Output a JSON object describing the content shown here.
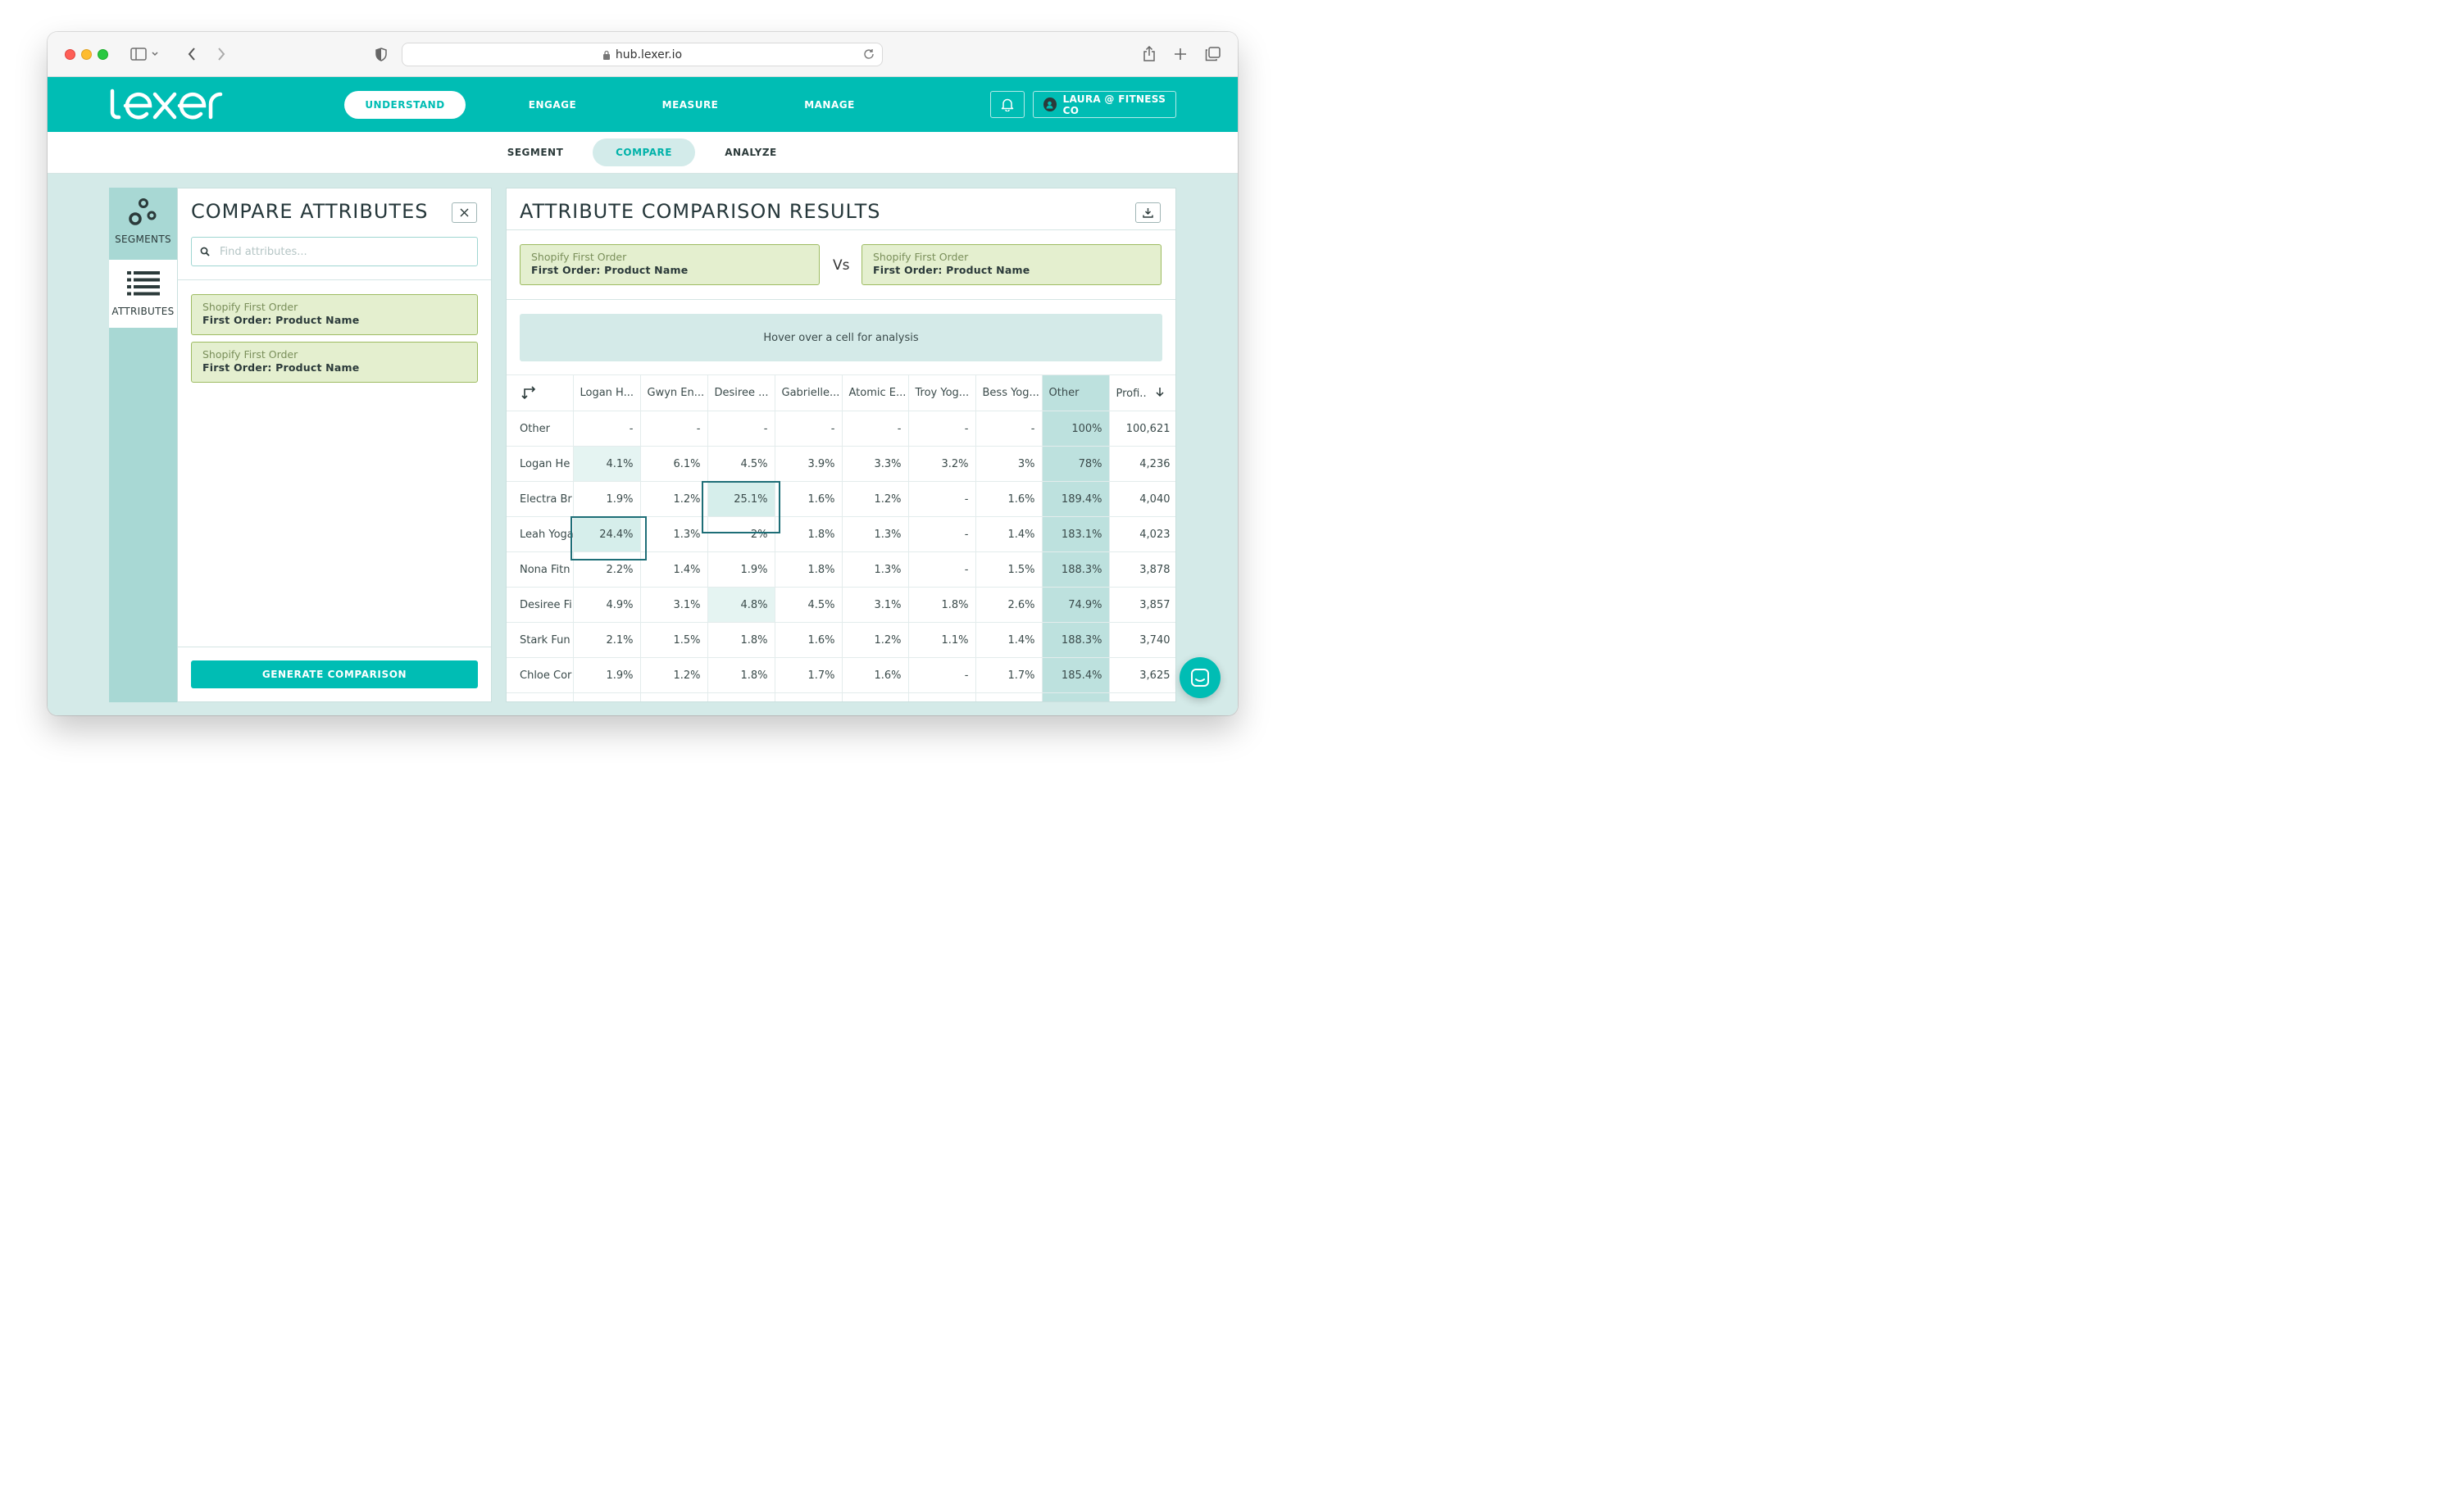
{
  "browser": {
    "url": "hub.lexer.io"
  },
  "brand": {
    "logo_text": "lexer",
    "accent": "#00bdb4"
  },
  "topnav": {
    "items": [
      {
        "label": "UNDERSTAND",
        "active": true
      },
      {
        "label": "ENGAGE",
        "active": false
      },
      {
        "label": "MEASURE",
        "active": false
      },
      {
        "label": "MANAGE",
        "active": false
      }
    ],
    "user_label": "LAURA @ FITNESS CO"
  },
  "subnav": {
    "items": [
      {
        "label": "SEGMENT",
        "active": false
      },
      {
        "label": "COMPARE",
        "active": true
      },
      {
        "label": "ANALYZE",
        "active": false
      }
    ]
  },
  "sidebar": {
    "items": [
      {
        "label": "SEGMENTS",
        "icon": "segments-icon"
      },
      {
        "label": "ATTRIBUTES",
        "icon": "list-icon",
        "selected": true
      }
    ]
  },
  "compare_panel": {
    "title": "COMPARE ATTRIBUTES",
    "search_placeholder": "Find attributes...",
    "cards": [
      {
        "source": "Shopify First Order",
        "name": "First Order: Product Name"
      },
      {
        "source": "Shopify First Order",
        "name": "First Order: Product Name"
      }
    ],
    "generate_label": "GENERATE COMPARISON"
  },
  "results": {
    "title": "ATTRIBUTE COMPARISON RESULTS",
    "left": {
      "source": "Shopify First Order",
      "name": "First Order: Product Name"
    },
    "vs": "Vs",
    "right": {
      "source": "Shopify First Order",
      "name": "First Order: Product Name"
    },
    "hover_hint": "Hover over a cell for analysis",
    "columns": [
      "Logan H...",
      "Gwyn En...",
      "Desiree ...",
      "Gabrielle...",
      "Atomic E...",
      "Troy Yog...",
      "Bess Yog...",
      "Other",
      "Profi.."
    ],
    "rows": [
      {
        "label": "Other",
        "cells": [
          "-",
          "-",
          "-",
          "-",
          "-",
          "-",
          "-",
          "100%",
          "100,621"
        ]
      },
      {
        "label": "Logan He",
        "cells": [
          "4.1%",
          "6.1%",
          "4.5%",
          "3.9%",
          "3.3%",
          "3.2%",
          "3%",
          "78%",
          "4,236"
        ]
      },
      {
        "label": "Electra Br",
        "cells": [
          "1.9%",
          "1.2%",
          "25.1%",
          "1.6%",
          "1.2%",
          "-",
          "1.6%",
          "189.4%",
          "4,040"
        ]
      },
      {
        "label": "Leah Yoga",
        "cells": [
          "24.4%",
          "1.3%",
          "2%",
          "1.8%",
          "1.3%",
          "-",
          "1.4%",
          "183.1%",
          "4,023"
        ]
      },
      {
        "label": "Nona Fitn",
        "cells": [
          "2.2%",
          "1.4%",
          "1.9%",
          "1.8%",
          "1.3%",
          "-",
          "1.5%",
          "188.3%",
          "3,878"
        ]
      },
      {
        "label": "Desiree Fi",
        "cells": [
          "4.9%",
          "3.1%",
          "4.8%",
          "4.5%",
          "3.1%",
          "1.8%",
          "2.6%",
          "74.9%",
          "3,857"
        ]
      },
      {
        "label": "Stark Fun",
        "cells": [
          "2.1%",
          "1.5%",
          "1.8%",
          "1.6%",
          "1.2%",
          "1.1%",
          "1.4%",
          "188.3%",
          "3,740"
        ]
      },
      {
        "label": "Chloe Cor",
        "cells": [
          "1.9%",
          "1.2%",
          "1.8%",
          "1.7%",
          "1.6%",
          "-",
          "1.7%",
          "185.4%",
          "3,625"
        ]
      }
    ]
  }
}
